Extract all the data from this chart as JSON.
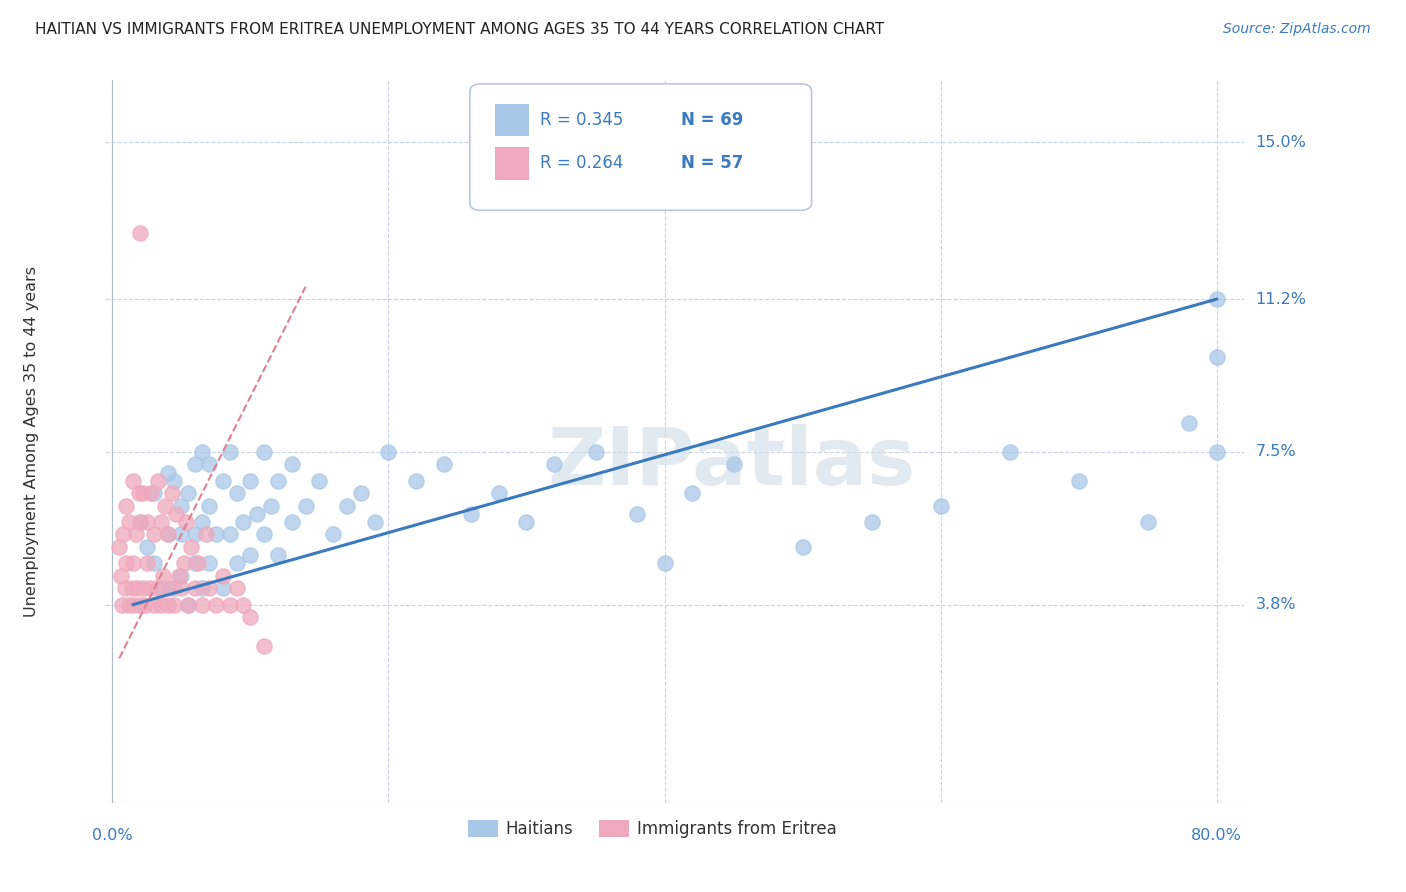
{
  "title": "HAITIAN VS IMMIGRANTS FROM ERITREA UNEMPLOYMENT AMONG AGES 35 TO 44 YEARS CORRELATION CHART",
  "source": "Source: ZipAtlas.com",
  "ylabel": "Unemployment Among Ages 35 to 44 years",
  "ytick_labels": [
    "3.8%",
    "7.5%",
    "11.2%",
    "15.0%"
  ],
  "ytick_values": [
    0.038,
    0.075,
    0.112,
    0.15
  ],
  "xtick_labels": [
    "0.0%",
    "80.0%"
  ],
  "xtick_values": [
    0.0,
    0.8
  ],
  "xlim": [
    -0.005,
    0.82
  ],
  "ylim": [
    -0.01,
    0.165
  ],
  "background_color": "#ffffff",
  "grid_color": "#c8d4e0",
  "watermark": "ZIPatlas",
  "legend_R_haitians": "R = 0.345",
  "legend_N_haitians": "N = 69",
  "legend_R_eritrea": "R = 0.264",
  "legend_N_eritrea": "N = 57",
  "haitians_color": "#a8c8e8",
  "eritrea_color": "#f0a8bc",
  "trend_haitian_color": "#3a7abf",
  "trend_eritrea_color": "#e08090",
  "haitian_trend_x": [
    0.015,
    0.8
  ],
  "haitian_trend_y": [
    0.038,
    0.112
  ],
  "eritrea_trend_x": [
    0.005,
    0.14
  ],
  "eritrea_trend_y": [
    0.025,
    0.115
  ],
  "haitians_scatter_x": [
    0.02,
    0.025,
    0.03,
    0.03,
    0.035,
    0.04,
    0.04,
    0.045,
    0.045,
    0.05,
    0.05,
    0.05,
    0.055,
    0.055,
    0.06,
    0.06,
    0.06,
    0.065,
    0.065,
    0.065,
    0.07,
    0.07,
    0.07,
    0.075,
    0.08,
    0.08,
    0.085,
    0.085,
    0.09,
    0.09,
    0.095,
    0.1,
    0.1,
    0.105,
    0.11,
    0.11,
    0.115,
    0.12,
    0.12,
    0.13,
    0.13,
    0.14,
    0.15,
    0.16,
    0.17,
    0.18,
    0.19,
    0.2,
    0.22,
    0.24,
    0.26,
    0.28,
    0.3,
    0.32,
    0.35,
    0.38,
    0.4,
    0.42,
    0.45,
    0.5,
    0.55,
    0.6,
    0.65,
    0.7,
    0.75,
    0.78,
    0.8,
    0.8,
    0.8
  ],
  "haitians_scatter_y": [
    0.058,
    0.052,
    0.048,
    0.065,
    0.042,
    0.055,
    0.07,
    0.042,
    0.068,
    0.045,
    0.055,
    0.062,
    0.038,
    0.065,
    0.048,
    0.055,
    0.072,
    0.042,
    0.058,
    0.075,
    0.048,
    0.062,
    0.072,
    0.055,
    0.042,
    0.068,
    0.055,
    0.075,
    0.048,
    0.065,
    0.058,
    0.05,
    0.068,
    0.06,
    0.055,
    0.075,
    0.062,
    0.05,
    0.068,
    0.058,
    0.072,
    0.062,
    0.068,
    0.055,
    0.062,
    0.065,
    0.058,
    0.075,
    0.068,
    0.072,
    0.06,
    0.065,
    0.058,
    0.072,
    0.075,
    0.06,
    0.048,
    0.065,
    0.072,
    0.052,
    0.058,
    0.062,
    0.075,
    0.068,
    0.058,
    0.082,
    0.075,
    0.098,
    0.112
  ],
  "eritrea_scatter_x": [
    0.005,
    0.006,
    0.007,
    0.008,
    0.009,
    0.01,
    0.01,
    0.012,
    0.012,
    0.014,
    0.015,
    0.015,
    0.016,
    0.017,
    0.018,
    0.019,
    0.02,
    0.02,
    0.022,
    0.022,
    0.024,
    0.025,
    0.025,
    0.027,
    0.028,
    0.03,
    0.03,
    0.032,
    0.033,
    0.035,
    0.035,
    0.037,
    0.038,
    0.04,
    0.04,
    0.042,
    0.043,
    0.045,
    0.046,
    0.048,
    0.05,
    0.052,
    0.053,
    0.055,
    0.057,
    0.06,
    0.062,
    0.065,
    0.068,
    0.07,
    0.075,
    0.08,
    0.085,
    0.09,
    0.095,
    0.1,
    0.11
  ],
  "eritrea_scatter_y": [
    0.052,
    0.045,
    0.038,
    0.055,
    0.042,
    0.048,
    0.062,
    0.038,
    0.058,
    0.042,
    0.048,
    0.068,
    0.038,
    0.055,
    0.042,
    0.065,
    0.038,
    0.058,
    0.042,
    0.065,
    0.038,
    0.048,
    0.058,
    0.042,
    0.065,
    0.038,
    0.055,
    0.042,
    0.068,
    0.038,
    0.058,
    0.045,
    0.062,
    0.038,
    0.055,
    0.042,
    0.065,
    0.038,
    0.06,
    0.045,
    0.042,
    0.048,
    0.058,
    0.038,
    0.052,
    0.042,
    0.048,
    0.038,
    0.055,
    0.042,
    0.038,
    0.045,
    0.038,
    0.042,
    0.038,
    0.035,
    0.028
  ],
  "eritrea_outlier_x": [
    0.02
  ],
  "eritrea_outlier_y": [
    0.128
  ]
}
